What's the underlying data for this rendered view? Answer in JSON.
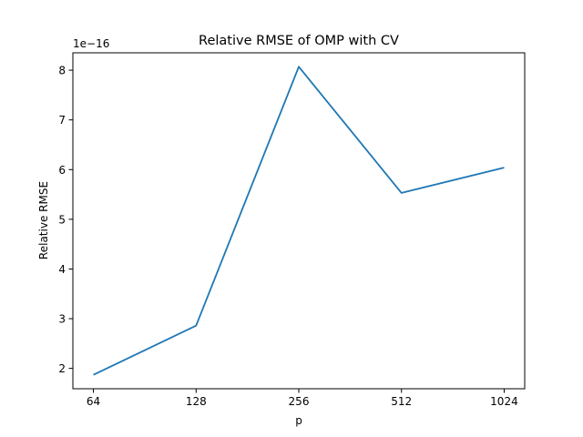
{
  "chart_data": {
    "type": "line",
    "title": "Relative RMSE of OMP with CV",
    "xlabel": "p",
    "ylabel": "Relative RMSE",
    "y_offset_label": "1e−16",
    "x_scale": "log2",
    "categories": [
      "64",
      "128",
      "256",
      "512",
      "1024"
    ],
    "x": [
      64,
      128,
      256,
      512,
      1024
    ],
    "series": [
      {
        "values": [
          1.87e-16,
          2.86e-16,
          8.07e-16,
          5.53e-16,
          6.04e-16
        ],
        "color": "#1f77b4"
      }
    ],
    "yticks": [
      2e-16,
      3e-16,
      4e-16,
      5e-16,
      6e-16,
      7e-16,
      8e-16
    ],
    "ytick_labels": [
      "2",
      "3",
      "4",
      "5",
      "6",
      "7",
      "8"
    ],
    "ylim": [
      1.59e-16,
      8.35e-16
    ],
    "grid": false,
    "legend": "none"
  }
}
